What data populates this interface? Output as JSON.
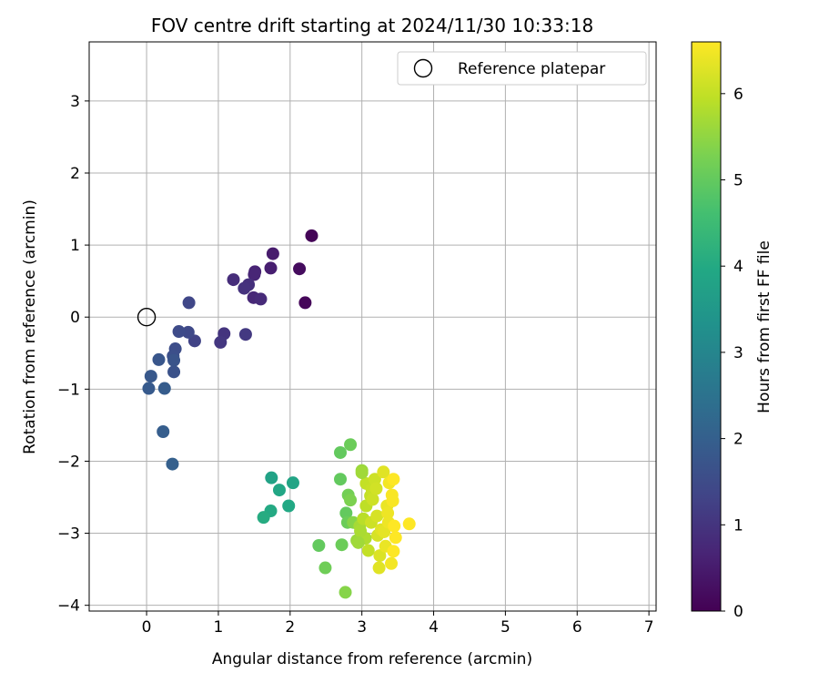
{
  "chart_data": {
    "type": "scatter",
    "title": "FOV centre drift starting at 2024/11/30 10:33:18",
    "xlabel": "Angular distance from reference (arcmin)",
    "ylabel": "Rotation from reference (arcmin)",
    "xlim": [
      -0.8,
      7.1
    ],
    "ylim": [
      -4.08,
      3.82
    ],
    "xticks": [
      0,
      1,
      2,
      3,
      4,
      5,
      6,
      7
    ],
    "yticks": [
      -4,
      -3,
      -2,
      -1,
      0,
      1,
      2,
      3
    ],
    "grid": true,
    "legend": {
      "placement": "top-right",
      "entries": [
        "Reference platepar"
      ]
    },
    "reference_point": {
      "x": 0,
      "y": 0,
      "label": "Reference platepar"
    },
    "colorbar": {
      "label": "Hours from first FF file",
      "range": [
        0,
        6.6
      ],
      "ticks": [
        0,
        1,
        2,
        3,
        4,
        5,
        6
      ],
      "colormap": "viridis"
    },
    "points": [
      {
        "x": 2.3,
        "y": 1.13,
        "c": 0.05
      },
      {
        "x": 2.21,
        "y": 0.2,
        "c": 0.1
      },
      {
        "x": 2.13,
        "y": 0.67,
        "c": 0.2
      },
      {
        "x": 1.76,
        "y": 0.88,
        "c": 0.5
      },
      {
        "x": 1.73,
        "y": 0.68,
        "c": 0.55
      },
      {
        "x": 1.51,
        "y": 0.63,
        "c": 0.65
      },
      {
        "x": 1.5,
        "y": 0.59,
        "c": 0.7
      },
      {
        "x": 1.49,
        "y": 0.27,
        "c": 0.75
      },
      {
        "x": 1.59,
        "y": 0.25,
        "c": 0.8
      },
      {
        "x": 1.21,
        "y": 0.52,
        "c": 0.85
      },
      {
        "x": 1.42,
        "y": 0.45,
        "c": 0.9
      },
      {
        "x": 1.36,
        "y": 0.4,
        "c": 0.95
      },
      {
        "x": 1.08,
        "y": -0.23,
        "c": 1.0
      },
      {
        "x": 1.03,
        "y": -0.35,
        "c": 1.05
      },
      {
        "x": 1.38,
        "y": -0.24,
        "c": 1.1
      },
      {
        "x": 0.67,
        "y": -0.33,
        "c": 1.3
      },
      {
        "x": 0.59,
        "y": 0.2,
        "c": 1.4
      },
      {
        "x": 0.58,
        "y": -0.21,
        "c": 1.45
      },
      {
        "x": 0.45,
        "y": -0.2,
        "c": 1.5
      },
      {
        "x": 0.4,
        "y": -0.44,
        "c": 1.55
      },
      {
        "x": 0.37,
        "y": -0.54,
        "c": 1.6
      },
      {
        "x": 0.38,
        "y": -0.76,
        "c": 1.65
      },
      {
        "x": 0.38,
        "y": -0.6,
        "c": 1.7
      },
      {
        "x": 0.17,
        "y": -0.59,
        "c": 1.75
      },
      {
        "x": 0.06,
        "y": -0.82,
        "c": 1.8
      },
      {
        "x": 0.03,
        "y": -0.99,
        "c": 1.85
      },
      {
        "x": 0.25,
        "y": -0.99,
        "c": 1.9
      },
      {
        "x": 0.23,
        "y": -1.59,
        "c": 1.95
      },
      {
        "x": 0.36,
        "y": -2.04,
        "c": 2.0
      },
      {
        "x": 1.74,
        "y": -2.23,
        "c": 3.8
      },
      {
        "x": 2.04,
        "y": -2.3,
        "c": 3.85
      },
      {
        "x": 1.85,
        "y": -2.4,
        "c": 3.9
      },
      {
        "x": 1.98,
        "y": -2.62,
        "c": 3.95
      },
      {
        "x": 1.73,
        "y": -2.69,
        "c": 4.0
      },
      {
        "x": 1.63,
        "y": -2.78,
        "c": 4.05
      },
      {
        "x": 2.7,
        "y": -1.88,
        "c": 5.0
      },
      {
        "x": 2.84,
        "y": -1.77,
        "c": 5.1
      },
      {
        "x": 2.7,
        "y": -2.25,
        "c": 5.0
      },
      {
        "x": 2.4,
        "y": -3.17,
        "c": 5.0
      },
      {
        "x": 2.72,
        "y": -3.16,
        "c": 5.1
      },
      {
        "x": 2.49,
        "y": -3.48,
        "c": 5.15
      },
      {
        "x": 2.77,
        "y": -3.82,
        "c": 5.4
      },
      {
        "x": 2.78,
        "y": -2.72,
        "c": 5.0
      },
      {
        "x": 2.8,
        "y": -2.85,
        "c": 5.1
      },
      {
        "x": 2.81,
        "y": -2.47,
        "c": 5.2
      },
      {
        "x": 2.84,
        "y": -2.54,
        "c": 5.3
      },
      {
        "x": 2.88,
        "y": -2.85,
        "c": 5.4
      },
      {
        "x": 2.93,
        "y": -3.1,
        "c": 5.6
      },
      {
        "x": 2.97,
        "y": -2.9,
        "c": 5.7
      },
      {
        "x": 3.0,
        "y": -2.13,
        "c": 5.6
      },
      {
        "x": 3.05,
        "y": -3.07,
        "c": 5.8
      },
      {
        "x": 3.02,
        "y": -2.8,
        "c": 5.9
      },
      {
        "x": 3.06,
        "y": -2.62,
        "c": 5.95
      },
      {
        "x": 3.06,
        "y": -2.31,
        "c": 6.0
      },
      {
        "x": 3.09,
        "y": -3.24,
        "c": 6.0
      },
      {
        "x": 3.12,
        "y": -2.48,
        "c": 6.0
      },
      {
        "x": 3.14,
        "y": -2.39,
        "c": 6.05
      },
      {
        "x": 3.15,
        "y": -2.53,
        "c": 6.1
      },
      {
        "x": 3.18,
        "y": -2.25,
        "c": 6.1
      },
      {
        "x": 3.13,
        "y": -2.85,
        "c": 6.1
      },
      {
        "x": 3.2,
        "y": -2.38,
        "c": 6.15
      },
      {
        "x": 3.22,
        "y": -3.03,
        "c": 6.2
      },
      {
        "x": 3.21,
        "y": -2.76,
        "c": 6.2
      },
      {
        "x": 3.25,
        "y": -3.31,
        "c": 6.25
      },
      {
        "x": 3.24,
        "y": -3.48,
        "c": 6.3
      },
      {
        "x": 3.27,
        "y": -2.95,
        "c": 6.3
      },
      {
        "x": 3.3,
        "y": -2.15,
        "c": 6.3
      },
      {
        "x": 3.31,
        "y": -2.98,
        "c": 6.35
      },
      {
        "x": 3.33,
        "y": -3.18,
        "c": 6.4
      },
      {
        "x": 3.35,
        "y": -2.62,
        "c": 6.4
      },
      {
        "x": 3.36,
        "y": -2.72,
        "c": 6.45
      },
      {
        "x": 3.37,
        "y": -2.85,
        "c": 6.45
      },
      {
        "x": 3.38,
        "y": -2.3,
        "c": 6.5
      },
      {
        "x": 3.41,
        "y": -3.42,
        "c": 6.5
      },
      {
        "x": 3.42,
        "y": -2.47,
        "c": 6.55
      },
      {
        "x": 3.43,
        "y": -2.55,
        "c": 6.55
      },
      {
        "x": 3.44,
        "y": -2.25,
        "c": 6.6
      },
      {
        "x": 3.44,
        "y": -3.25,
        "c": 6.6
      },
      {
        "x": 3.45,
        "y": -2.9,
        "c": 6.6
      },
      {
        "x": 3.47,
        "y": -3.06,
        "c": 6.6
      },
      {
        "x": 3.66,
        "y": -2.87,
        "c": 6.6
      },
      {
        "x": 2.98,
        "y": -2.97,
        "c": 5.75
      },
      {
        "x": 2.95,
        "y": -3.13,
        "c": 5.65
      },
      {
        "x": 3.0,
        "y": -2.16,
        "c": 5.65
      }
    ]
  }
}
